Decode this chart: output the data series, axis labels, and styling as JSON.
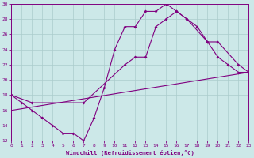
{
  "xlabel": "Windchill (Refroidissement éolien,°C)",
  "xlim": [
    0,
    23
  ],
  "ylim": [
    12,
    30
  ],
  "xticks": [
    0,
    1,
    2,
    3,
    4,
    5,
    6,
    7,
    8,
    9,
    10,
    11,
    12,
    13,
    14,
    15,
    16,
    17,
    18,
    19,
    20,
    21,
    22,
    23
  ],
  "yticks": [
    12,
    14,
    16,
    18,
    20,
    22,
    24,
    26,
    28,
    30
  ],
  "bg_color": "#cce8e8",
  "line_color": "#800080",
  "grid_color": "#aacccc",
  "line1_x": [
    0,
    1,
    2,
    3,
    4,
    5,
    6,
    7,
    8,
    9,
    10,
    11,
    12,
    13,
    14,
    15,
    16,
    17,
    18,
    19,
    20,
    21,
    22,
    23
  ],
  "line1_y": [
    18,
    17,
    16,
    15,
    14,
    13,
    13,
    12,
    15,
    19,
    24,
    27,
    27,
    29,
    29,
    30,
    29,
    28,
    27,
    25,
    23,
    22,
    21,
    21
  ],
  "line2_x": [
    0,
    2,
    7,
    11,
    12,
    13,
    14,
    15,
    16,
    17,
    19,
    20,
    22,
    23
  ],
  "line2_y": [
    18,
    17,
    17,
    22,
    23,
    23,
    27,
    28,
    29,
    28,
    25,
    25,
    22,
    21
  ],
  "line3_x": [
    0,
    23
  ],
  "line3_y": [
    16,
    21
  ]
}
